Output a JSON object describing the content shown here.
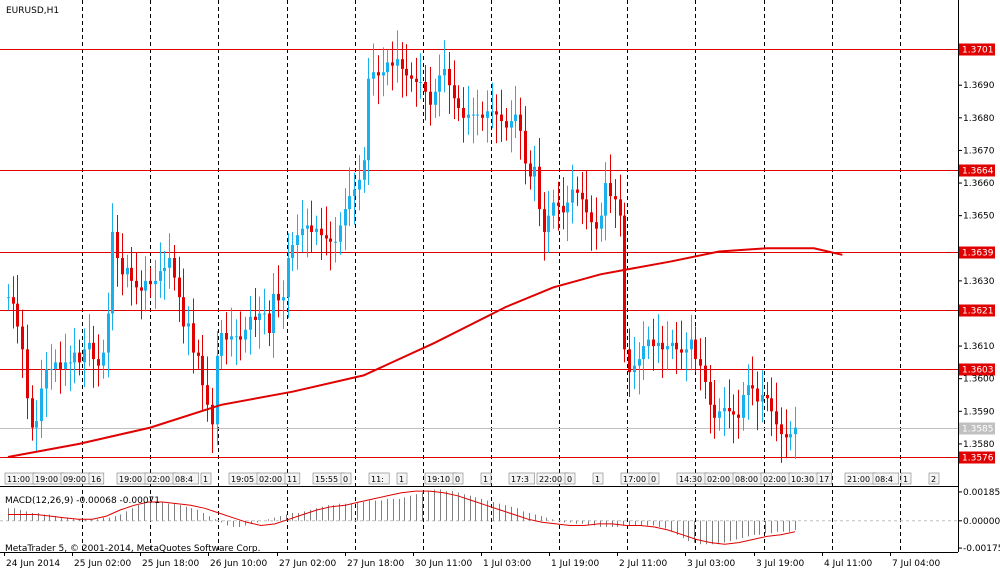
{
  "chart_data": {
    "type": "line",
    "symbol_label": "EURUSD,H1",
    "y_range": [
      1.3572,
      1.371
    ],
    "y_ticks": [
      "1.3690",
      "1.3680",
      "1.3670",
      "1.3660",
      "1.3650",
      "1.3630",
      "1.3610",
      "1.3600",
      "1.3590",
      "1.3580"
    ],
    "h_levels": [
      {
        "value": 1.3701,
        "label": "1.3701",
        "color": "#e00000"
      },
      {
        "value": 1.3664,
        "label": "1.3664",
        "color": "#e00000"
      },
      {
        "value": 1.3639,
        "label": "1.3639",
        "color": "#e00000"
      },
      {
        "value": 1.3621,
        "label": "1.3621",
        "color": "#e00000"
      },
      {
        "value": 1.3603,
        "label": "1.3603",
        "color": "#e00000"
      },
      {
        "value": 1.3576,
        "label": "1.3576",
        "color": "#e00000"
      }
    ],
    "current_price": {
      "value": 1.3585,
      "label": "1.3585"
    },
    "x_labels": [
      "24 Jun 2014",
      "25 Jun 02:00",
      "25 Jun 18:00",
      "26 Jun 10:00",
      "27 Jun 02:00",
      "27 Jun 18:00",
      "30 Jun 11:00",
      "1 Jul 03:00",
      "1 Jul 19:00",
      "2 Jul 11:00",
      "3 Jul 03:00",
      "3 Jul 19:00",
      "4 Jul 11:00",
      "7 Jul 04:00"
    ],
    "event_labels": [
      "11:00",
      "19:00",
      "09:00",
      "16",
      "19:00",
      "02:00",
      "08:4",
      "1",
      "19:05",
      "02:00",
      "11",
      "15:55",
      "0",
      "11:",
      "1",
      "19:10",
      "0",
      "1",
      "17:3",
      "22:00",
      "0",
      "1",
      "17:00",
      "0",
      "14:30",
      "02:00",
      "08:00",
      "02:00",
      "10:30",
      "17",
      "21:00",
      "08:4",
      "1",
      "2"
    ],
    "close_prices": [
      1.3625,
      1.3623,
      1.3616,
      1.3609,
      1.3594,
      1.3585,
      1.3587,
      1.3597,
      1.3603,
      1.3603,
      1.3605,
      1.3603,
      1.3605,
      1.3605,
      1.3608,
      1.3605,
      1.3609,
      1.3611,
      1.3606,
      1.3604,
      1.3608,
      1.362,
      1.3645,
      1.3637,
      1.3632,
      1.3634,
      1.363,
      1.3628,
      1.3627,
      1.363,
      1.3629,
      1.363,
      1.3633,
      1.3634,
      1.3637,
      1.3631,
      1.3625,
      1.3616,
      1.3617,
      1.3608,
      1.3607,
      1.3598,
      1.3592,
      1.3586,
      1.3607,
      1.3614,
      1.3612,
      1.3613,
      1.3613,
      1.3612,
      1.3615,
      1.3619,
      1.3618,
      1.362,
      1.362,
      1.3614,
      1.3626,
      1.3624,
      1.3625,
      1.3637,
      1.3641,
      1.3644,
      1.3646,
      1.3647,
      1.3645,
      1.3646,
      1.3644,
      1.3643,
      1.3642,
      1.3642,
      1.3647,
      1.3652,
      1.3656,
      1.3658,
      1.3661,
      1.3667,
      1.3692,
      1.3694,
      1.3693,
      1.3694,
      1.3697,
      1.3696,
      1.3698,
      1.3695,
      1.3693,
      1.3692,
      1.3691,
      1.3691,
      1.3688,
      1.3684,
      1.3688,
      1.3693,
      1.3695,
      1.369,
      1.3686,
      1.3683,
      1.368,
      1.3681,
      1.3681,
      1.3681,
      1.368,
      1.3682,
      1.3682,
      1.3681,
      1.3679,
      1.3677,
      1.3679,
      1.3681,
      1.3676,
      1.3666,
      1.3662,
      1.3665,
      1.3652,
      1.3645,
      1.365,
      1.3654,
      1.3653,
      1.3651,
      1.3654,
      1.3658,
      1.3657,
      1.3655,
      1.3651,
      1.3648,
      1.3646,
      1.365,
      1.366,
      1.3656,
      1.3655,
      1.365,
      1.3609,
      1.3602,
      1.3604,
      1.3606,
      1.361,
      1.3612,
      1.361,
      1.3611,
      1.3609,
      1.361,
      1.3611,
      1.3609,
      1.3608,
      1.3609,
      1.3612,
      1.3606,
      1.3604,
      1.3599,
      1.3592,
      1.3588,
      1.359,
      1.3591,
      1.359,
      1.3589,
      1.3588,
      1.3595,
      1.3598,
      1.3597,
      1.3593,
      1.3595,
      1.3594,
      1.359,
      1.3586,
      1.3583,
      1.3582,
      1.3583,
      1.3585
    ],
    "ma_points": [
      [
        0,
        1.3576
      ],
      [
        15,
        1.358
      ],
      [
        30,
        1.3585
      ],
      [
        45,
        1.3592
      ],
      [
        60,
        1.3596
      ],
      [
        75,
        1.3601
      ],
      [
        90,
        1.3611
      ],
      [
        105,
        1.3622
      ],
      [
        115,
        1.3628
      ],
      [
        125,
        1.3632
      ],
      [
        140,
        1.3636
      ],
      [
        150,
        1.3639
      ],
      [
        160,
        1.364
      ],
      [
        170,
        1.364
      ],
      [
        176,
        1.3638
      ]
    ],
    "macd_indicator": {
      "label": "MACD(12,26,9) -0.00068 -0.00071",
      "y_ticks": [
        "0.00185",
        "0.00000",
        "-0.00175"
      ],
      "range": [
        -0.002,
        0.0021
      ],
      "histogram": [
        0.0008,
        0.0008,
        0.0007,
        0.0006,
        0.0005,
        0.0005,
        0.0004,
        0.0004,
        0.0003,
        0.0002,
        0.0002,
        0.0001,
        0.0001,
        0.0001,
        0.0001,
        0.0001,
        0.0002,
        0.0002,
        0.0003,
        0.0004,
        0.0006,
        0.0008,
        0.001,
        0.0011,
        0.0012,
        0.0012,
        0.0012,
        0.0011,
        0.0011,
        0.001,
        0.0009,
        0.0008,
        0.0007,
        0.0005,
        0.0003,
        0.0001,
        -0.0001,
        -0.0003,
        -0.0004,
        -0.0004,
        -0.0003,
        -0.0002,
        -0.0001,
        0.0,
        0.0001,
        0.0002,
        0.0003,
        0.0004,
        0.0005,
        0.0005,
        0.0006,
        0.0007,
        0.0008,
        0.0009,
        0.001,
        0.001,
        0.0011,
        0.0011,
        0.0011,
        0.0012,
        0.0012,
        0.0013,
        0.0013,
        0.0013,
        0.0014,
        0.0014,
        0.0014,
        0.0015,
        0.0016,
        0.0017,
        0.0018,
        0.0019,
        0.002,
        0.002,
        0.0019,
        0.0019,
        0.0018,
        0.0017,
        0.0016,
        0.0015,
        0.0014,
        0.0013,
        0.0012,
        0.0011,
        0.001,
        0.0009,
        0.0008,
        0.0006,
        0.0005,
        0.0004,
        0.0003,
        0.0002,
        0.0001,
        0.0,
        -0.0001,
        -0.0001,
        -0.0002,
        -0.0002,
        -0.0003,
        -0.0003,
        -0.0004,
        -0.0004,
        -0.0004,
        -0.0004,
        -0.0003,
        -0.0003,
        -0.0003,
        -0.0003,
        -0.0003,
        -0.0003,
        -0.0004,
        -0.0005,
        -0.0007,
        -0.0009,
        -0.0011,
        -0.0013,
        -0.0014,
        -0.0015,
        -0.0015,
        -0.0015,
        -0.0015,
        -0.0014,
        -0.0013,
        -0.0012,
        -0.0011,
        -0.001,
        -0.0009,
        -0.0009,
        -0.0008,
        -0.0008,
        -0.0007,
        -0.0007,
        -0.0007,
        -0.0006
      ],
      "signal": [
        0.0004,
        0.0004,
        0.0004,
        0.0003,
        0.0002,
        0.0001,
        0.0001,
        0.0003,
        0.0007,
        0.001,
        0.0012,
        0.0012,
        0.0011,
        0.001,
        0.0008,
        0.0005,
        0.0002,
        -0.0001,
        -0.0003,
        -0.0002,
        0.0001,
        0.0004,
        0.0007,
        0.0009,
        0.001,
        0.0012,
        0.0014,
        0.0016,
        0.0018,
        0.0019,
        0.0019,
        0.0018,
        0.0016,
        0.0013,
        0.001,
        0.0007,
        0.0004,
        0.0001,
        -0.0001,
        -0.0002,
        -0.0003,
        -0.0003,
        -0.0002,
        -0.0002,
        -0.0003,
        -0.0003,
        -0.0004,
        -0.0006,
        -0.0009,
        -0.0012,
        -0.0014,
        -0.0015,
        -0.0014,
        -0.0012,
        -0.001,
        -0.0009,
        -0.0007
      ]
    },
    "grid": true,
    "copyright": "MetaTrader 5, © 2001-2014, MetaQuotes Software Corp.",
    "colors": {
      "bull": "#1ab0ee",
      "bear": "#e00000",
      "level": "#e00000",
      "ma": "#e00000",
      "current": "#c0c0c0",
      "axis": "#000000"
    }
  }
}
